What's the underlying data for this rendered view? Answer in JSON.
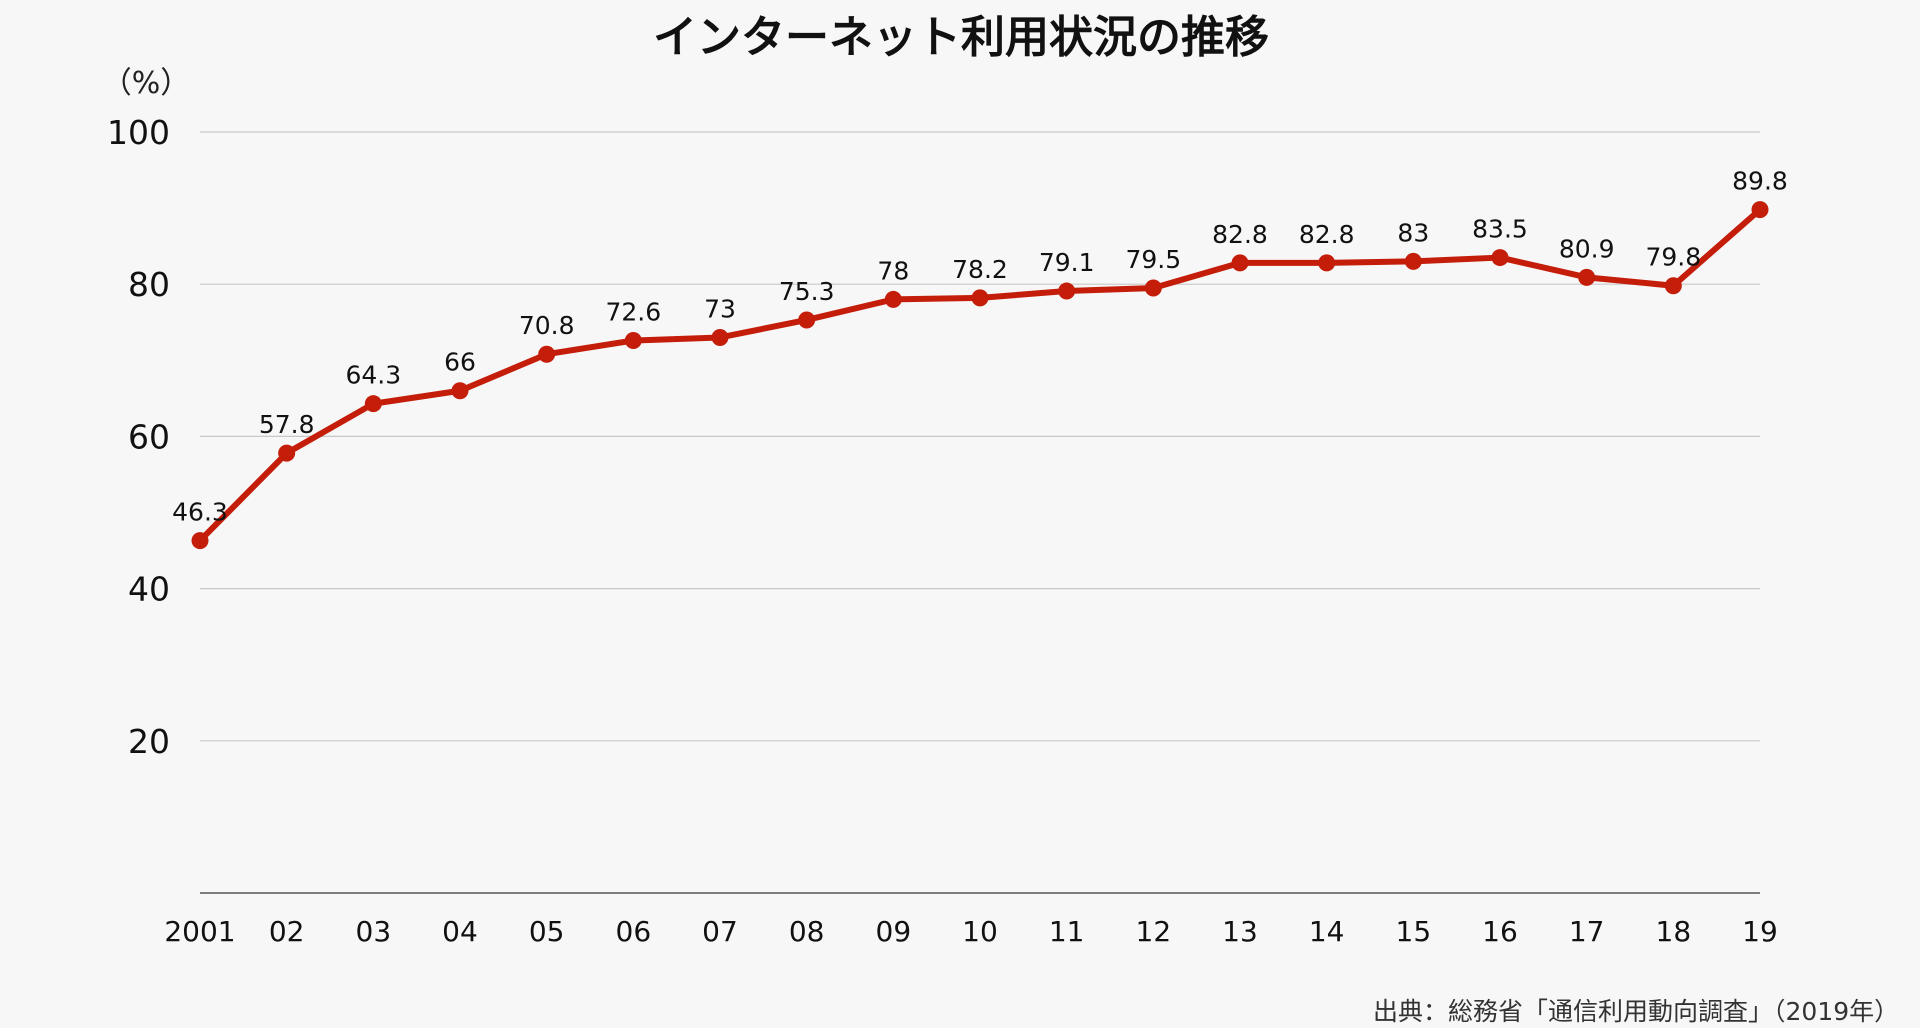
{
  "chart_data": {
    "type": "line",
    "title": "インターネット利用状況の推移",
    "ylabel": "（%）",
    "xlabel": "",
    "categories": [
      "2001",
      "02",
      "03",
      "04",
      "05",
      "06",
      "07",
      "08",
      "09",
      "10",
      "11",
      "12",
      "13",
      "14",
      "15",
      "16",
      "17",
      "18",
      "19"
    ],
    "values": [
      46.3,
      57.8,
      64.3,
      66,
      70.8,
      72.6,
      73,
      75.3,
      78,
      78.2,
      79.1,
      79.5,
      82.8,
      82.8,
      83,
      83.5,
      80.9,
      79.8,
      89.8
    ],
    "data_labels": [
      "46.3",
      "57.8",
      "64.3",
      "66",
      "70.8",
      "72.6",
      "73",
      "75.3",
      "78",
      "78.2",
      "79.1",
      "79.5",
      "82.8",
      "82.8",
      "83",
      "83.5",
      "80.9",
      "79.8",
      "89.8"
    ],
    "ylim": [
      0,
      100
    ],
    "yticks": [
      20,
      40,
      60,
      80,
      100
    ],
    "grid": true,
    "line_color": "#c41e0a",
    "source": "出典：総務省「通信利用動向調査」（2019年）"
  }
}
